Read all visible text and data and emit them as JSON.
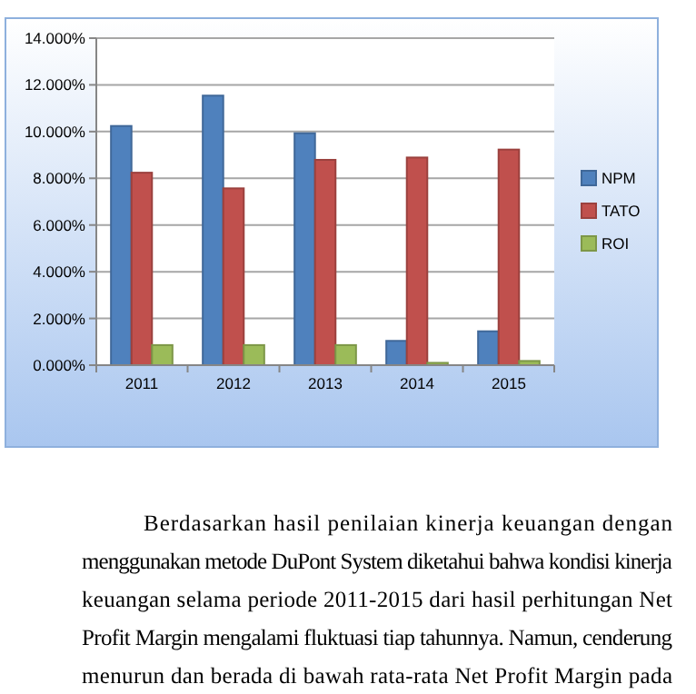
{
  "chart_data": {
    "type": "bar",
    "categories": [
      "2011",
      "2012",
      "2013",
      "2014",
      "2015"
    ],
    "series": [
      {
        "name": "NPM",
        "color": "#4f81bd",
        "values": [
          10.24,
          11.54,
          9.93,
          1.04,
          1.45
        ]
      },
      {
        "name": "TATO",
        "color": "#c0504d",
        "values": [
          8.24,
          7.57,
          8.79,
          8.89,
          9.23
        ]
      },
      {
        "name": "ROI",
        "color": "#9bbb59",
        "values": [
          0.86,
          0.86,
          0.86,
          0.1,
          0.18
        ]
      }
    ],
    "ylim": [
      0,
      14
    ],
    "yticks": [
      {
        "value": 0,
        "label": "0.000%"
      },
      {
        "value": 2,
        "label": "2.000%"
      },
      {
        "value": 4,
        "label": "4.000%"
      },
      {
        "value": 6,
        "label": "6.000%"
      },
      {
        "value": 8,
        "label": "8.000%"
      },
      {
        "value": 10,
        "label": "10.000%"
      },
      {
        "value": 12,
        "label": "12.000%"
      },
      {
        "value": 14,
        "label": "14.000%"
      }
    ],
    "grid": "y",
    "legend": "right",
    "annotations": [
      "Berdasarkan hasil penilaian kinerja keuangan dengan",
      "menggunakan metode DuPont System diketahui bahwa kondisi kinerja",
      "keuangan selama periode 2011-2015 dari hasil perhitungan Net",
      "Profit Margin mengalami fluktuasi tiap tahunnya. Namun, cenderung",
      "menurun dan berada di bawah rata-rata Net Profit Margin pada"
    ]
  }
}
